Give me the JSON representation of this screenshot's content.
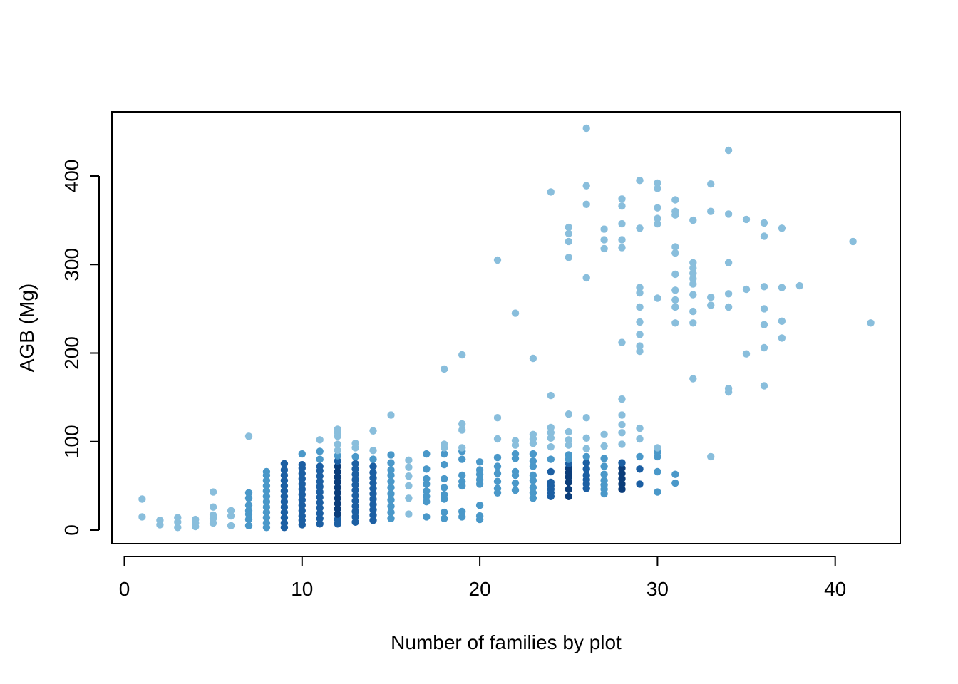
{
  "chart_data": {
    "type": "scatter",
    "title": "",
    "xlabel": "Number of families by plot",
    "ylabel": "AGB (Mg)",
    "xlim": [
      0,
      42
    ],
    "ylim": [
      0,
      455
    ],
    "xticks": [
      0,
      10,
      20,
      30,
      40
    ],
    "yticks": [
      0,
      100,
      200,
      300,
      400
    ],
    "grid": false,
    "colors": {
      "light": "#89bedc",
      "mid": "#4a98c9",
      "dark": "#1c5fa3",
      "darkest": "#0b3d7a"
    },
    "points": [
      [
        1,
        15
      ],
      [
        1,
        35
      ],
      [
        2,
        6
      ],
      [
        2,
        11
      ],
      [
        3,
        3
      ],
      [
        3,
        9
      ],
      [
        3,
        14
      ],
      [
        4,
        4
      ],
      [
        4,
        8
      ],
      [
        4,
        12
      ],
      [
        5,
        8
      ],
      [
        5,
        13
      ],
      [
        5,
        17
      ],
      [
        5,
        26
      ],
      [
        5,
        43
      ],
      [
        6,
        5
      ],
      [
        6,
        16
      ],
      [
        6,
        22
      ],
      [
        7,
        5
      ],
      [
        7,
        12
      ],
      [
        7,
        18
      ],
      [
        7,
        22
      ],
      [
        7,
        28
      ],
      [
        7,
        36
      ],
      [
        7,
        42
      ],
      [
        7,
        106
      ],
      [
        8,
        3
      ],
      [
        8,
        8
      ],
      [
        8,
        14
      ],
      [
        8,
        20
      ],
      [
        8,
        26
      ],
      [
        8,
        32
      ],
      [
        8,
        38
      ],
      [
        8,
        44
      ],
      [
        8,
        50
      ],
      [
        8,
        56
      ],
      [
        8,
        62
      ],
      [
        8,
        66
      ],
      [
        9,
        3
      ],
      [
        9,
        8
      ],
      [
        9,
        14
      ],
      [
        9,
        20
      ],
      [
        9,
        26
      ],
      [
        9,
        32
      ],
      [
        9,
        38
      ],
      [
        9,
        44
      ],
      [
        9,
        50
      ],
      [
        9,
        56
      ],
      [
        9,
        62
      ],
      [
        9,
        68
      ],
      [
        9,
        75
      ],
      [
        10,
        6
      ],
      [
        10,
        11
      ],
      [
        10,
        16
      ],
      [
        10,
        22
      ],
      [
        10,
        28
      ],
      [
        10,
        34
      ],
      [
        10,
        40
      ],
      [
        10,
        46
      ],
      [
        10,
        52
      ],
      [
        10,
        58
      ],
      [
        10,
        64
      ],
      [
        10,
        70
      ],
      [
        10,
        74
      ],
      [
        10,
        86
      ],
      [
        11,
        7
      ],
      [
        11,
        13
      ],
      [
        11,
        19
      ],
      [
        11,
        25
      ],
      [
        11,
        31
      ],
      [
        11,
        37
      ],
      [
        11,
        43
      ],
      [
        11,
        49
      ],
      [
        11,
        55
      ],
      [
        11,
        61
      ],
      [
        11,
        67
      ],
      [
        11,
        72
      ],
      [
        11,
        80
      ],
      [
        11,
        89
      ],
      [
        11,
        102
      ],
      [
        12,
        7
      ],
      [
        12,
        12
      ],
      [
        12,
        18
      ],
      [
        12,
        24
      ],
      [
        12,
        30
      ],
      [
        12,
        36
      ],
      [
        12,
        42
      ],
      [
        12,
        48
      ],
      [
        12,
        54
      ],
      [
        12,
        60
      ],
      [
        12,
        66
      ],
      [
        12,
        72
      ],
      [
        12,
        78
      ],
      [
        12,
        84
      ],
      [
        12,
        90
      ],
      [
        12,
        97
      ],
      [
        12,
        106
      ],
      [
        12,
        110
      ],
      [
        12,
        114
      ],
      [
        13,
        9
      ],
      [
        13,
        15
      ],
      [
        13,
        21
      ],
      [
        13,
        27
      ],
      [
        13,
        33
      ],
      [
        13,
        39
      ],
      [
        13,
        45
      ],
      [
        13,
        51
      ],
      [
        13,
        57
      ],
      [
        13,
        63
      ],
      [
        13,
        69
      ],
      [
        13,
        75
      ],
      [
        13,
        83
      ],
      [
        13,
        93
      ],
      [
        13,
        98
      ],
      [
        14,
        11
      ],
      [
        14,
        17
      ],
      [
        14,
        23
      ],
      [
        14,
        29
      ],
      [
        14,
        35
      ],
      [
        14,
        41
      ],
      [
        14,
        47
      ],
      [
        14,
        53
      ],
      [
        14,
        59
      ],
      [
        14,
        65
      ],
      [
        14,
        72
      ],
      [
        14,
        80
      ],
      [
        14,
        90
      ],
      [
        14,
        112
      ],
      [
        15,
        13
      ],
      [
        15,
        20
      ],
      [
        15,
        27
      ],
      [
        15,
        34
      ],
      [
        15,
        41
      ],
      [
        15,
        48
      ],
      [
        15,
        55
      ],
      [
        15,
        62
      ],
      [
        15,
        68
      ],
      [
        15,
        76
      ],
      [
        15,
        85
      ],
      [
        15,
        130
      ],
      [
        16,
        18
      ],
      [
        16,
        36
      ],
      [
        16,
        50
      ],
      [
        16,
        61
      ],
      [
        16,
        71
      ],
      [
        16,
        79
      ],
      [
        17,
        15
      ],
      [
        17,
        32
      ],
      [
        17,
        38
      ],
      [
        17,
        44
      ],
      [
        17,
        52
      ],
      [
        17,
        58
      ],
      [
        17,
        69
      ],
      [
        17,
        86
      ],
      [
        18,
        13
      ],
      [
        18,
        20
      ],
      [
        18,
        35
      ],
      [
        18,
        40
      ],
      [
        18,
        48
      ],
      [
        18,
        58
      ],
      [
        18,
        74
      ],
      [
        18,
        86
      ],
      [
        18,
        93
      ],
      [
        18,
        97
      ],
      [
        18,
        182
      ],
      [
        19,
        15
      ],
      [
        19,
        21
      ],
      [
        19,
        50
      ],
      [
        19,
        55
      ],
      [
        19,
        62
      ],
      [
        19,
        80
      ],
      [
        19,
        89
      ],
      [
        19,
        93
      ],
      [
        19,
        113
      ],
      [
        19,
        120
      ],
      [
        19,
        198
      ],
      [
        20,
        12
      ],
      [
        20,
        16
      ],
      [
        20,
        28
      ],
      [
        20,
        52
      ],
      [
        20,
        57
      ],
      [
        20,
        63
      ],
      [
        20,
        68
      ],
      [
        20,
        77
      ],
      [
        21,
        42
      ],
      [
        21,
        47
      ],
      [
        21,
        55
      ],
      [
        21,
        64
      ],
      [
        21,
        72
      ],
      [
        21,
        82
      ],
      [
        21,
        103
      ],
      [
        21,
        127
      ],
      [
        21,
        305
      ],
      [
        22,
        45
      ],
      [
        22,
        53
      ],
      [
        22,
        62
      ],
      [
        22,
        66
      ],
      [
        22,
        81
      ],
      [
        22,
        86
      ],
      [
        22,
        96
      ],
      [
        22,
        101
      ],
      [
        22,
        245
      ],
      [
        23,
        36
      ],
      [
        23,
        42
      ],
      [
        23,
        48
      ],
      [
        23,
        56
      ],
      [
        23,
        62
      ],
      [
        23,
        72
      ],
      [
        23,
        78
      ],
      [
        23,
        86
      ],
      [
        23,
        98
      ],
      [
        23,
        103
      ],
      [
        23,
        108
      ],
      [
        23,
        194
      ],
      [
        24,
        38
      ],
      [
        24,
        42
      ],
      [
        24,
        46
      ],
      [
        24,
        50
      ],
      [
        24,
        54
      ],
      [
        24,
        66
      ],
      [
        24,
        80
      ],
      [
        24,
        94
      ],
      [
        24,
        104
      ],
      [
        24,
        110
      ],
      [
        24,
        116
      ],
      [
        24,
        152
      ],
      [
        24,
        382
      ],
      [
        25,
        38
      ],
      [
        25,
        46
      ],
      [
        25,
        54
      ],
      [
        25,
        60
      ],
      [
        25,
        65
      ],
      [
        25,
        70
      ],
      [
        25,
        75
      ],
      [
        25,
        80
      ],
      [
        25,
        85
      ],
      [
        25,
        96
      ],
      [
        25,
        102
      ],
      [
        25,
        111
      ],
      [
        25,
        131
      ],
      [
        25,
        308
      ],
      [
        25,
        326
      ],
      [
        25,
        335
      ],
      [
        25,
        342
      ],
      [
        26,
        47
      ],
      [
        26,
        52
      ],
      [
        26,
        57
      ],
      [
        26,
        62
      ],
      [
        26,
        69
      ],
      [
        26,
        76
      ],
      [
        26,
        83
      ],
      [
        26,
        92
      ],
      [
        26,
        104
      ],
      [
        26,
        127
      ],
      [
        26,
        285
      ],
      [
        26,
        368
      ],
      [
        26,
        389
      ],
      [
        26,
        454
      ],
      [
        27,
        41
      ],
      [
        27,
        46
      ],
      [
        27,
        51
      ],
      [
        27,
        56
      ],
      [
        27,
        63
      ],
      [
        27,
        72
      ],
      [
        27,
        81
      ],
      [
        27,
        95
      ],
      [
        27,
        108
      ],
      [
        27,
        318
      ],
      [
        27,
        328
      ],
      [
        27,
        340
      ],
      [
        28,
        46
      ],
      [
        28,
        52
      ],
      [
        28,
        58
      ],
      [
        28,
        64
      ],
      [
        28,
        70
      ],
      [
        28,
        76
      ],
      [
        28,
        97
      ],
      [
        28,
        110
      ],
      [
        28,
        119
      ],
      [
        28,
        130
      ],
      [
        28,
        148
      ],
      [
        28,
        212
      ],
      [
        28,
        319
      ],
      [
        28,
        328
      ],
      [
        28,
        346
      ],
      [
        28,
        366
      ],
      [
        28,
        374
      ],
      [
        29,
        52
      ],
      [
        29,
        69
      ],
      [
        29,
        83
      ],
      [
        29,
        103
      ],
      [
        29,
        115
      ],
      [
        29,
        202
      ],
      [
        29,
        208
      ],
      [
        29,
        221
      ],
      [
        29,
        235
      ],
      [
        29,
        252
      ],
      [
        29,
        268
      ],
      [
        29,
        274
      ],
      [
        29,
        341
      ],
      [
        29,
        395
      ],
      [
        30,
        43
      ],
      [
        30,
        66
      ],
      [
        30,
        83
      ],
      [
        30,
        88
      ],
      [
        30,
        93
      ],
      [
        30,
        262
      ],
      [
        30,
        346
      ],
      [
        30,
        352
      ],
      [
        30,
        364
      ],
      [
        30,
        386
      ],
      [
        30,
        392
      ],
      [
        31,
        53
      ],
      [
        31,
        63
      ],
      [
        31,
        234
      ],
      [
        31,
        252
      ],
      [
        31,
        260
      ],
      [
        31,
        271
      ],
      [
        31,
        289
      ],
      [
        31,
        313
      ],
      [
        31,
        320
      ],
      [
        31,
        356
      ],
      [
        31,
        360
      ],
      [
        31,
        373
      ],
      [
        32,
        171
      ],
      [
        32,
        234
      ],
      [
        32,
        247
      ],
      [
        32,
        266
      ],
      [
        32,
        278
      ],
      [
        32,
        284
      ],
      [
        32,
        290
      ],
      [
        32,
        296
      ],
      [
        32,
        302
      ],
      [
        32,
        350
      ],
      [
        33,
        83
      ],
      [
        33,
        254
      ],
      [
        33,
        263
      ],
      [
        33,
        360
      ],
      [
        33,
        391
      ],
      [
        34,
        156
      ],
      [
        34,
        160
      ],
      [
        34,
        252
      ],
      [
        34,
        267
      ],
      [
        34,
        302
      ],
      [
        34,
        357
      ],
      [
        34,
        429
      ],
      [
        35,
        199
      ],
      [
        35,
        272
      ],
      [
        35,
        351
      ],
      [
        36,
        163
      ],
      [
        36,
        206
      ],
      [
        36,
        232
      ],
      [
        36,
        250
      ],
      [
        36,
        275
      ],
      [
        36,
        332
      ],
      [
        36,
        347
      ],
      [
        37,
        217
      ],
      [
        37,
        236
      ],
      [
        37,
        274
      ],
      [
        37,
        341
      ],
      [
        38,
        276
      ],
      [
        41,
        326
      ],
      [
        42,
        234
      ]
    ]
  }
}
